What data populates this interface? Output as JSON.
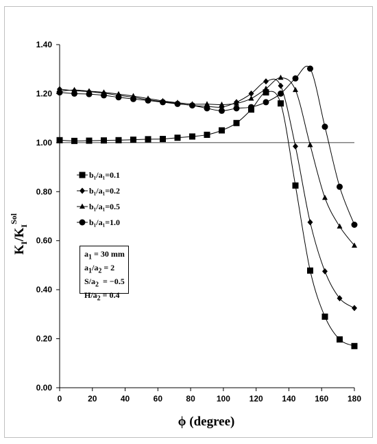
{
  "chart_data": {
    "type": "line",
    "xlabel_main": "ϕ (degree)",
    "ylabel": {
      "main": "K",
      "sub1": "I",
      "slash": "/K",
      "sub2": "I",
      "sup": "Sol"
    },
    "xlim": [
      0,
      180
    ],
    "ylim": [
      0.0,
      1.4
    ],
    "x_ticks": [
      "0",
      "20",
      "40",
      "60",
      "80",
      "100",
      "120",
      "140",
      "160",
      "180"
    ],
    "y_ticks": [
      "0.00",
      "0.20",
      "0.40",
      "0.60",
      "0.80",
      "1.00",
      "1.20",
      "1.40"
    ],
    "reference_line": 1.0,
    "grid": false,
    "legend_position": "left-middle",
    "series": [
      {
        "name": "b₁/a₁=0.1",
        "marker": "square",
        "x": [
          0,
          9,
          18,
          27,
          36,
          45,
          54,
          63,
          72,
          81,
          90,
          99,
          108,
          117,
          126,
          135,
          144,
          153,
          162,
          171,
          180
        ],
        "y": [
          1.01,
          1.007,
          1.008,
          1.009,
          1.01,
          1.012,
          1.014,
          1.015,
          1.02,
          1.025,
          1.032,
          1.05,
          1.08,
          1.135,
          1.205,
          1.16,
          0.825,
          0.478,
          0.29,
          0.197,
          0.17
        ]
      },
      {
        "name": "b₁/a₁=0.2",
        "marker": "diamond",
        "x": [
          0,
          9,
          18,
          27,
          36,
          45,
          54,
          63,
          72,
          81,
          90,
          99,
          108,
          117,
          126,
          135,
          144,
          153,
          162,
          171,
          180
        ],
        "y": [
          1.218,
          1.212,
          1.208,
          1.202,
          1.193,
          1.185,
          1.175,
          1.167,
          1.16,
          1.152,
          1.148,
          1.145,
          1.165,
          1.2,
          1.25,
          1.232,
          0.985,
          0.675,
          0.475,
          0.365,
          0.325
        ]
      },
      {
        "name": "b₁/a₁=0.5",
        "marker": "triangle",
        "x": [
          0,
          9,
          18,
          27,
          36,
          45,
          54,
          63,
          72,
          81,
          90,
          99,
          108,
          117,
          126,
          135,
          144,
          153,
          162,
          171,
          180
        ],
        "y": [
          1.21,
          1.215,
          1.21,
          1.205,
          1.198,
          1.19,
          1.18,
          1.17,
          1.163,
          1.157,
          1.157,
          1.155,
          1.16,
          1.18,
          1.22,
          1.265,
          1.215,
          0.99,
          0.775,
          0.658,
          0.58
        ]
      },
      {
        "name": "b₁/a₁=1.0",
        "marker": "circle",
        "x": [
          0,
          9,
          18,
          27,
          36,
          45,
          54,
          63,
          72,
          81,
          90,
          99,
          108,
          117,
          126,
          135,
          144,
          153,
          162,
          171,
          180
        ],
        "y": [
          1.205,
          1.2,
          1.198,
          1.193,
          1.185,
          1.178,
          1.172,
          1.165,
          1.158,
          1.152,
          1.14,
          1.13,
          1.14,
          1.145,
          1.165,
          1.2,
          1.262,
          1.302,
          1.065,
          0.82,
          0.665
        ]
      }
    ]
  },
  "parameters": [
    {
      "prefix": "a",
      "sub": "1",
      "rest": " = 30 mm"
    },
    {
      "prefix": "a",
      "sub": "1",
      "rest": "/a",
      "sub2": "2",
      "rest2": " = 2"
    },
    {
      "prefix": "S/a",
      "sub": "2",
      "rest": "  = −0.5"
    },
    {
      "prefix": "H/a",
      "sub": "2",
      "rest": " = 0.4"
    }
  ]
}
